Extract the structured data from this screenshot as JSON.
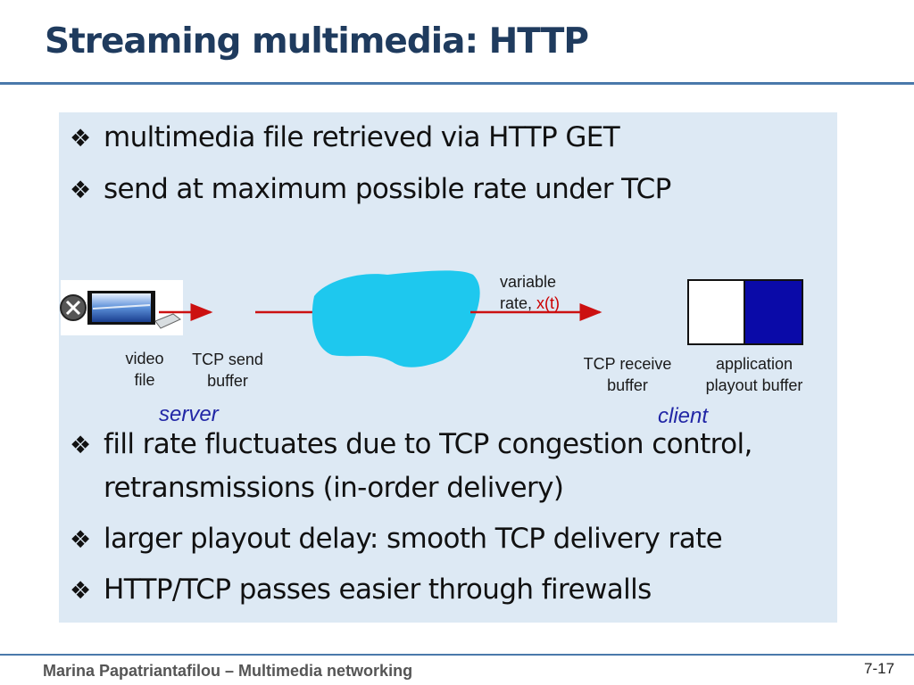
{
  "title": "Streaming multimedia: HTTP",
  "bullets_top": [
    "multimedia file retrieved via HTTP GET",
    "send at maximum possible rate under TCP"
  ],
  "bullets_bottom": [
    {
      "lines": [
        "fill rate fluctuates due to TCP congestion control,",
        "retransmissions (in-order delivery)"
      ]
    },
    {
      "lines": [
        "larger playout delay: smooth TCP delivery rate"
      ]
    },
    {
      "lines": [
        "HTTP/TCP passes easier through firewalls"
      ]
    }
  ],
  "bullet_glyph": "❖",
  "diagram": {
    "video_file_label": [
      "video",
      "file"
    ],
    "tcp_send_label": [
      "TCP send",
      "buffer"
    ],
    "server_label": "server",
    "variable_rate_label": [
      "variable",
      "rate, "
    ],
    "rate_symbol": "x(t)",
    "tcp_receive_label": [
      "TCP receive",
      "buffer"
    ],
    "app_buffer_label": [
      "application",
      "playout buffer"
    ],
    "client_label": "client",
    "colors": {
      "cloud": "#1ec8ee",
      "arrow": "#cc1111",
      "buffer_fill": "#0a0aa8",
      "role_text": "#2227a6"
    }
  },
  "footer": {
    "author": "Marina Papatriantafilou –  Multimedia networking",
    "page": "7-17"
  }
}
